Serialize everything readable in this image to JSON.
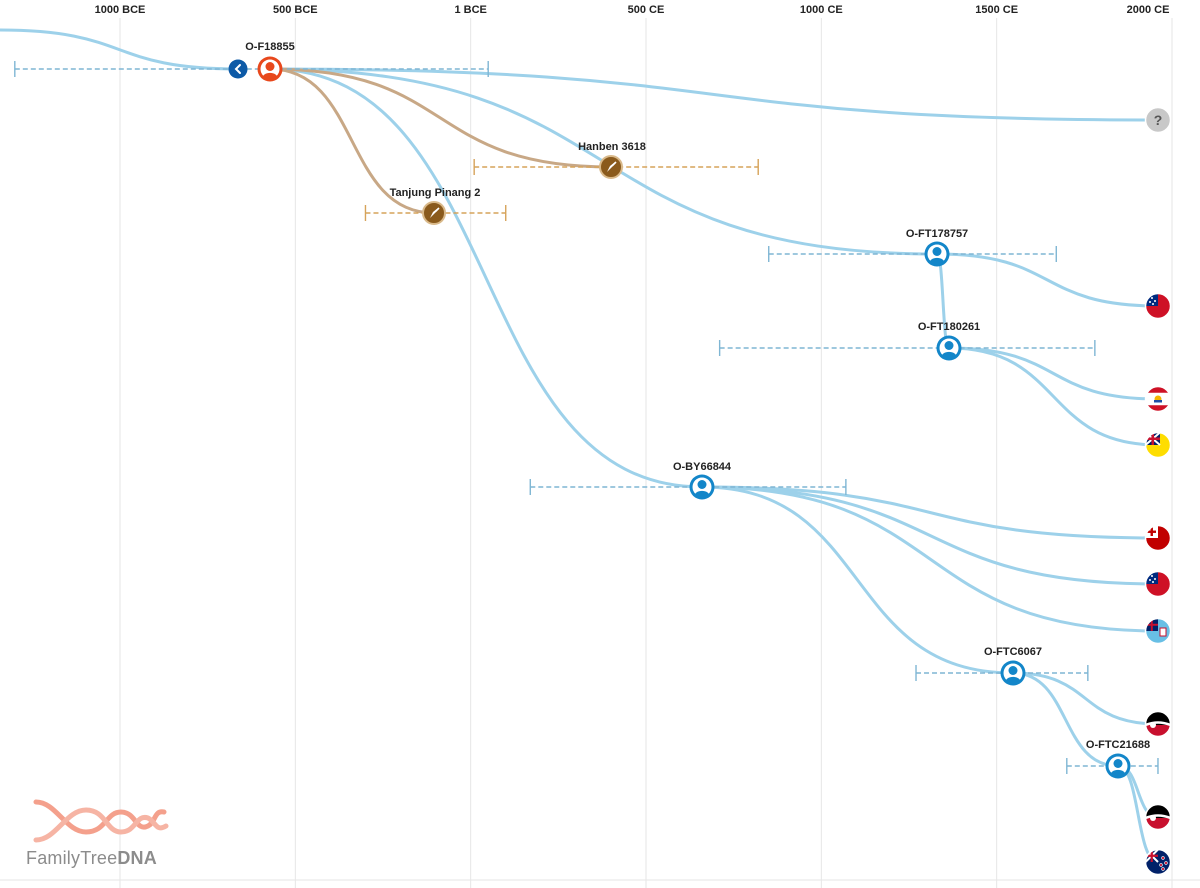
{
  "axis": {
    "ticks": [
      {
        "label": "1000 BCE",
        "year": -1000
      },
      {
        "label": "500 BCE",
        "year": -500
      },
      {
        "label": "1 BCE",
        "year": 0
      },
      {
        "label": "500 CE",
        "year": 500
      },
      {
        "label": "1000 CE",
        "year": 1000
      },
      {
        "label": "1500 CE",
        "year": 1500
      },
      {
        "label": "2000 CE",
        "year": 2000
      }
    ]
  },
  "colors": {
    "branch": "#9dd1ea",
    "ancient_branch": "#c8a886",
    "range_blue": "#7fb6d4",
    "range_gold": "#d6a35a",
    "node_blue": "#1386c9",
    "node_root": "#e8481c",
    "node_ancient": "#8a5a1c",
    "node_back": "#0d5aa7",
    "unknown": "#c8c8c8",
    "grid": "#e6e6e6"
  },
  "nodes": [
    {
      "id": "back",
      "label": "",
      "kind": "back",
      "icon": "chevron-left-icon"
    },
    {
      "id": "root",
      "label": "O-F18855",
      "kind": "root",
      "icon": "person-icon"
    },
    {
      "id": "hanben",
      "label": "Hanben 3618",
      "kind": "ancient",
      "icon": "trowel-icon"
    },
    {
      "id": "tanjung",
      "label": "Tanjung Pinang 2",
      "kind": "ancient",
      "icon": "trowel-icon"
    },
    {
      "id": "ft178757",
      "label": "O-FT178757",
      "kind": "haplo",
      "icon": "person-icon"
    },
    {
      "id": "ft180261",
      "label": "O-FT180261",
      "kind": "haplo",
      "icon": "person-icon"
    },
    {
      "id": "by66844",
      "label": "O-BY66844",
      "kind": "haplo",
      "icon": "person-icon"
    },
    {
      "id": "ftc6067",
      "label": "O-FTC6067",
      "kind": "haplo",
      "icon": "person-icon"
    },
    {
      "id": "ftc21688",
      "label": "O-FTC21688",
      "kind": "haplo",
      "icon": "person-icon"
    }
  ],
  "leaves": [
    {
      "id": "unknown",
      "kind": "unknown",
      "icon": "question-icon",
      "text": "?"
    },
    {
      "id": "samoa1",
      "kind": "flag",
      "icon": "samoa-flag-icon"
    },
    {
      "id": "fpoly",
      "kind": "flag",
      "icon": "french-polynesia-flag-icon"
    },
    {
      "id": "niue",
      "kind": "flag",
      "icon": "niue-flag-icon"
    },
    {
      "id": "tonga",
      "kind": "flag",
      "icon": "tonga-flag-icon"
    },
    {
      "id": "samoa2",
      "kind": "flag",
      "icon": "samoa-flag-icon"
    },
    {
      "id": "fiji",
      "kind": "flag",
      "icon": "fiji-flag-icon"
    },
    {
      "id": "maori1",
      "kind": "flag",
      "icon": "maori-flag-icon"
    },
    {
      "id": "maori2",
      "kind": "flag",
      "icon": "maori-flag-icon"
    },
    {
      "id": "nz",
      "kind": "flag",
      "icon": "new-zealand-flag-icon"
    }
  ],
  "brand": {
    "name_light": "FamilyTree",
    "name_bold": "DNA",
    "logo_icon": "dna-helix-icon"
  }
}
